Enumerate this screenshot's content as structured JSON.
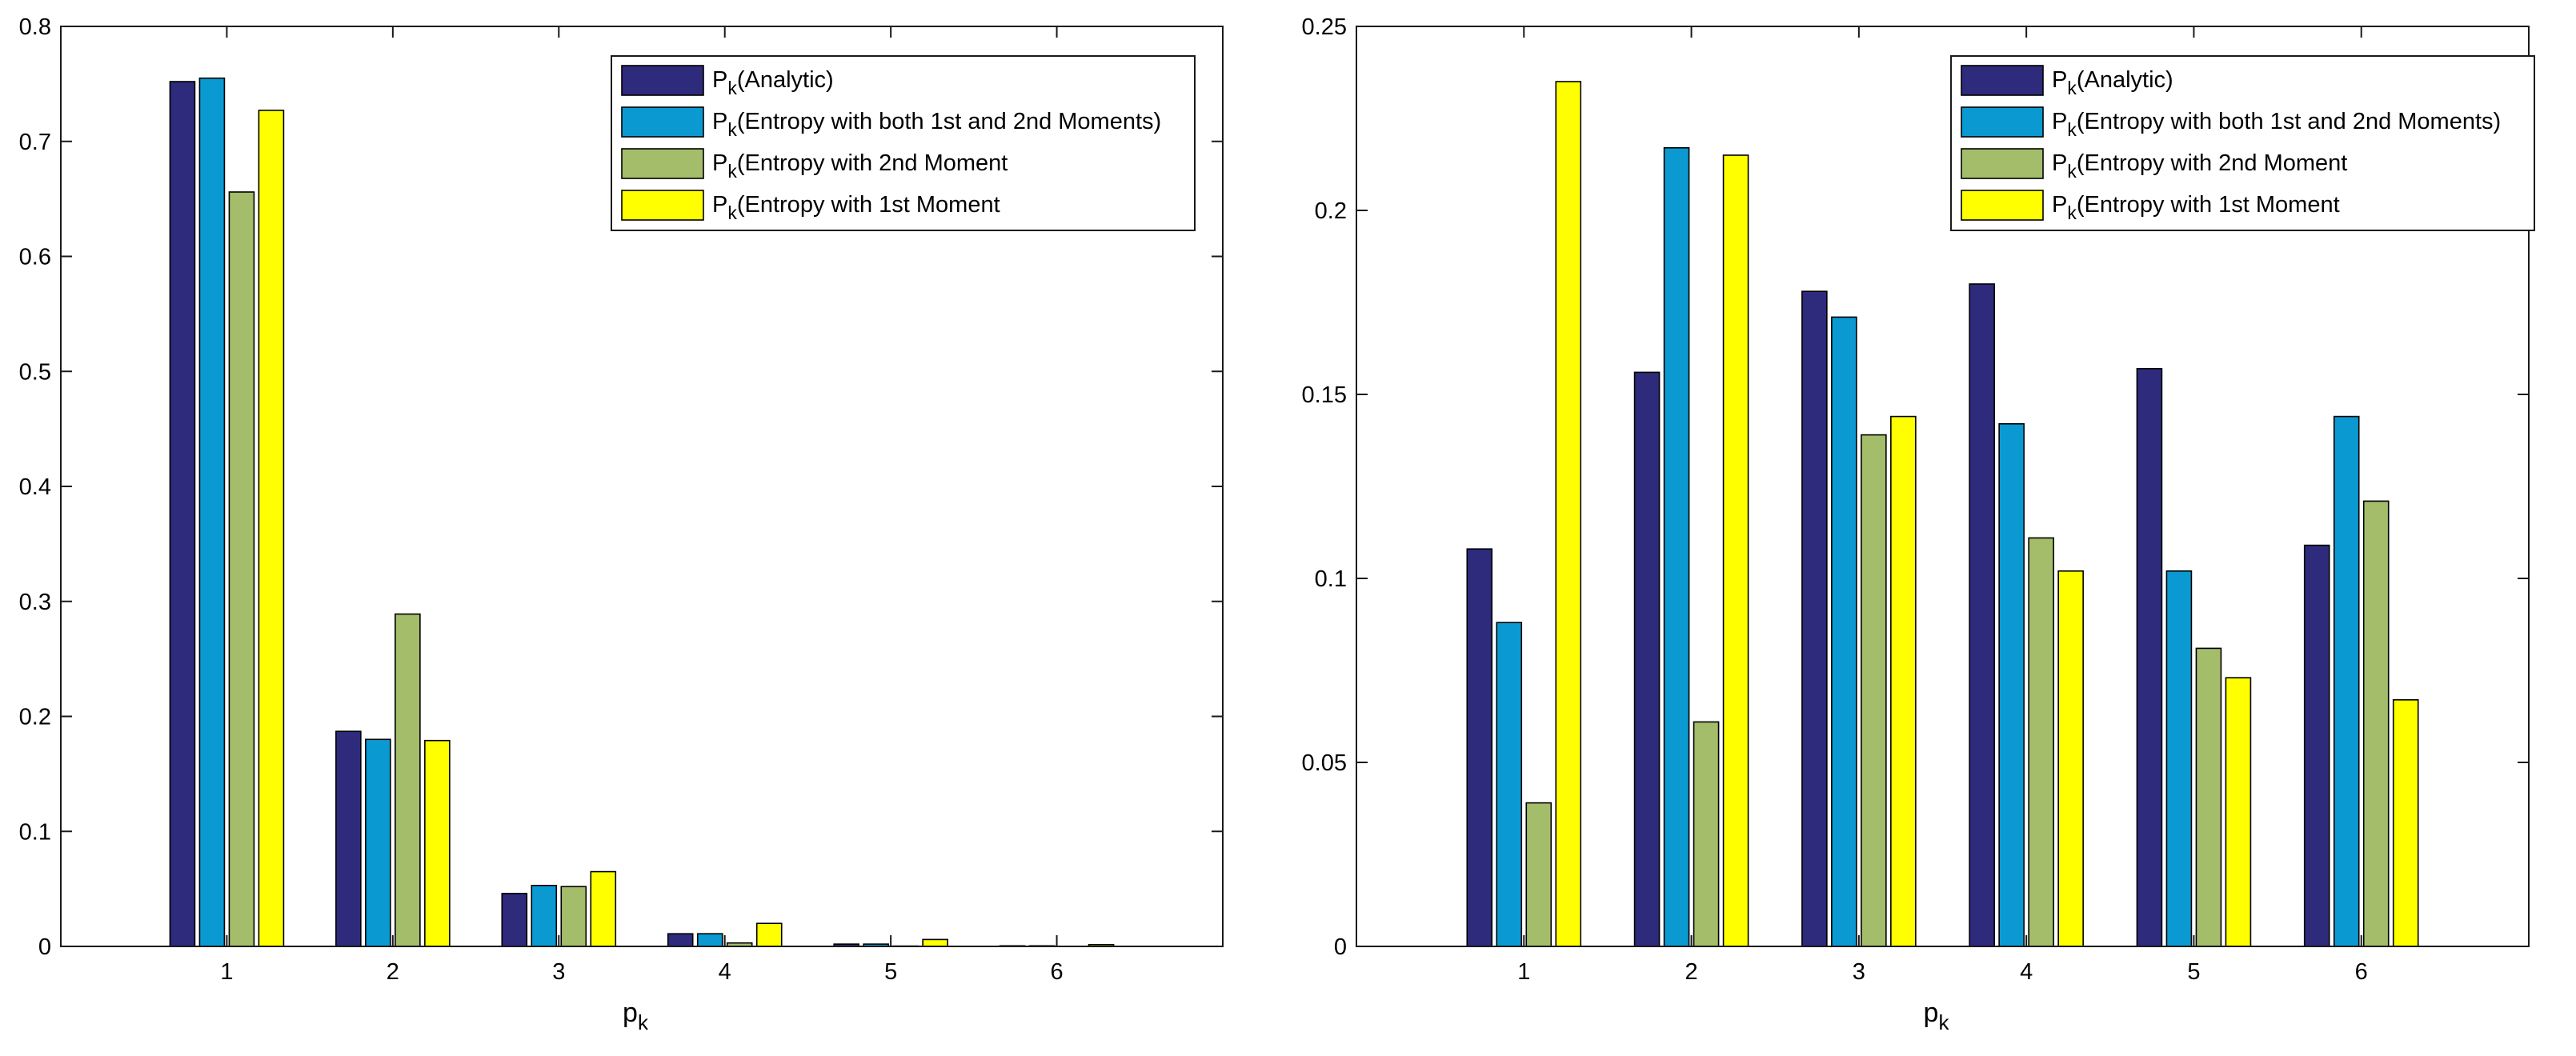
{
  "colors": {
    "analytic": "#2e2a7c",
    "both_moments": "#0a9ad1",
    "second_moment": "#a3bd6a",
    "first_moment": "#ffff00"
  },
  "chart_data": [
    {
      "type": "bar",
      "xlabel": "p",
      "xlabel_sub": "k",
      "categories": [
        "1",
        "2",
        "3",
        "4",
        "5",
        "6"
      ],
      "ylim": [
        0,
        0.8
      ],
      "yticks": [
        0,
        0.1,
        0.2,
        0.3,
        0.4,
        0.5,
        0.6,
        0.7,
        0.8
      ],
      "ytick_labels": [
        "0",
        "0.1",
        "0.2",
        "0.3",
        "0.4",
        "0.5",
        "0.6",
        "0.7",
        "0.8"
      ],
      "xlim": [
        0,
        7
      ],
      "grid": false,
      "legend_position": "top-right",
      "series": [
        {
          "name_main": "P",
          "name_sub": "k",
          "name_rest": "(Analytic)",
          "color_key": "analytic",
          "values": [
            0.752,
            0.187,
            0.046,
            0.011,
            0.002,
            0.0005
          ]
        },
        {
          "name_main": "P",
          "name_sub": "k",
          "name_rest": "(Entropy with both 1st and 2nd Moments)",
          "color_key": "both_moments",
          "values": [
            0.755,
            0.18,
            0.053,
            0.011,
            0.002,
            0.0005
          ]
        },
        {
          "name_main": "P",
          "name_sub": "k",
          "name_rest": "(Entropy with 2nd Moment",
          "color_key": "second_moment",
          "values": [
            0.656,
            0.289,
            0.052,
            0.003,
            0.0003,
            0.0001
          ]
        },
        {
          "name_main": "P",
          "name_sub": "k",
          "name_rest": "(Entropy with 1st Moment",
          "color_key": "first_moment",
          "values": [
            0.727,
            0.179,
            0.065,
            0.02,
            0.006,
            0.0015
          ]
        }
      ]
    },
    {
      "type": "bar",
      "xlabel": "p",
      "xlabel_sub": "k",
      "categories": [
        "1",
        "2",
        "3",
        "4",
        "5",
        "6"
      ],
      "ylim": [
        0,
        0.25
      ],
      "yticks": [
        0,
        0.05,
        0.1,
        0.15,
        0.2,
        0.25
      ],
      "ytick_labels": [
        "0",
        "0.05",
        "0.1",
        "0.15",
        "0.2",
        "0.25"
      ],
      "xlim": [
        0,
        7
      ],
      "grid": false,
      "legend_position": "top-right",
      "series": [
        {
          "name_main": "P",
          "name_sub": "k",
          "name_rest": "(Analytic)",
          "color_key": "analytic",
          "values": [
            0.108,
            0.156,
            0.178,
            0.18,
            0.157,
            0.109
          ]
        },
        {
          "name_main": "P",
          "name_sub": "k",
          "name_rest": "(Entropy with both 1st and 2nd Moments)",
          "color_key": "both_moments",
          "values": [
            0.088,
            0.217,
            0.171,
            0.142,
            0.102,
            0.144
          ]
        },
        {
          "name_main": "P",
          "name_sub": "k",
          "name_rest": "(Entropy with 2nd Moment",
          "color_key": "second_moment",
          "values": [
            0.039,
            0.061,
            0.139,
            0.111,
            0.081,
            0.121
          ]
        },
        {
          "name_main": "P",
          "name_sub": "k",
          "name_rest": "(Entropy with 1st Moment",
          "color_key": "first_moment",
          "values": [
            0.235,
            0.215,
            0.144,
            0.102,
            0.073,
            0.067
          ]
        }
      ]
    }
  ]
}
